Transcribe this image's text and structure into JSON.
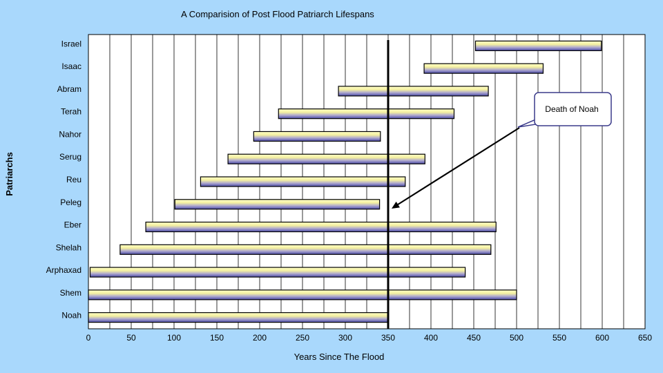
{
  "chart_data": {
    "type": "bar",
    "orientation": "horizontal-floating",
    "title": "A Comparision of Post Flood Patriarch Lifespans",
    "xlabel": "Years Since The Flood",
    "ylabel": "Patriarchs",
    "xlim": [
      0,
      650
    ],
    "xticks": [
      0,
      50,
      100,
      150,
      200,
      250,
      300,
      350,
      400,
      450,
      500,
      550,
      600,
      650
    ],
    "grid": "vertical every 25",
    "bars": [
      {
        "name": "Israel",
        "start": 452,
        "end": 599
      },
      {
        "name": "Isaac",
        "start": 392,
        "end": 531
      },
      {
        "name": "Abram",
        "start": 292,
        "end": 467
      },
      {
        "name": "Terah",
        "start": 222,
        "end": 427
      },
      {
        "name": "Nahor",
        "start": 193,
        "end": 341
      },
      {
        "name": "Serug",
        "start": 163,
        "end": 393
      },
      {
        "name": "Reu",
        "start": 131,
        "end": 370
      },
      {
        "name": "Peleg",
        "start": 101,
        "end": 340
      },
      {
        "name": "Eber",
        "start": 67,
        "end": 476
      },
      {
        "name": "Shelah",
        "start": 37,
        "end": 470
      },
      {
        "name": "Arphaxad",
        "start": 2,
        "end": 440
      },
      {
        "name": "Shem",
        "start": 0,
        "end": 500
      },
      {
        "name": "Noah",
        "start": 0,
        "end": 350
      }
    ],
    "marker_line": {
      "x": 350
    },
    "annotation": {
      "text": "Death of Noah",
      "points_to_x": 350
    },
    "colors": {
      "bar_light": "#ffffa8",
      "bar_dark": "#3c3c9a",
      "background": "#a9d8fc",
      "plot_bg": "#ffffff"
    }
  }
}
